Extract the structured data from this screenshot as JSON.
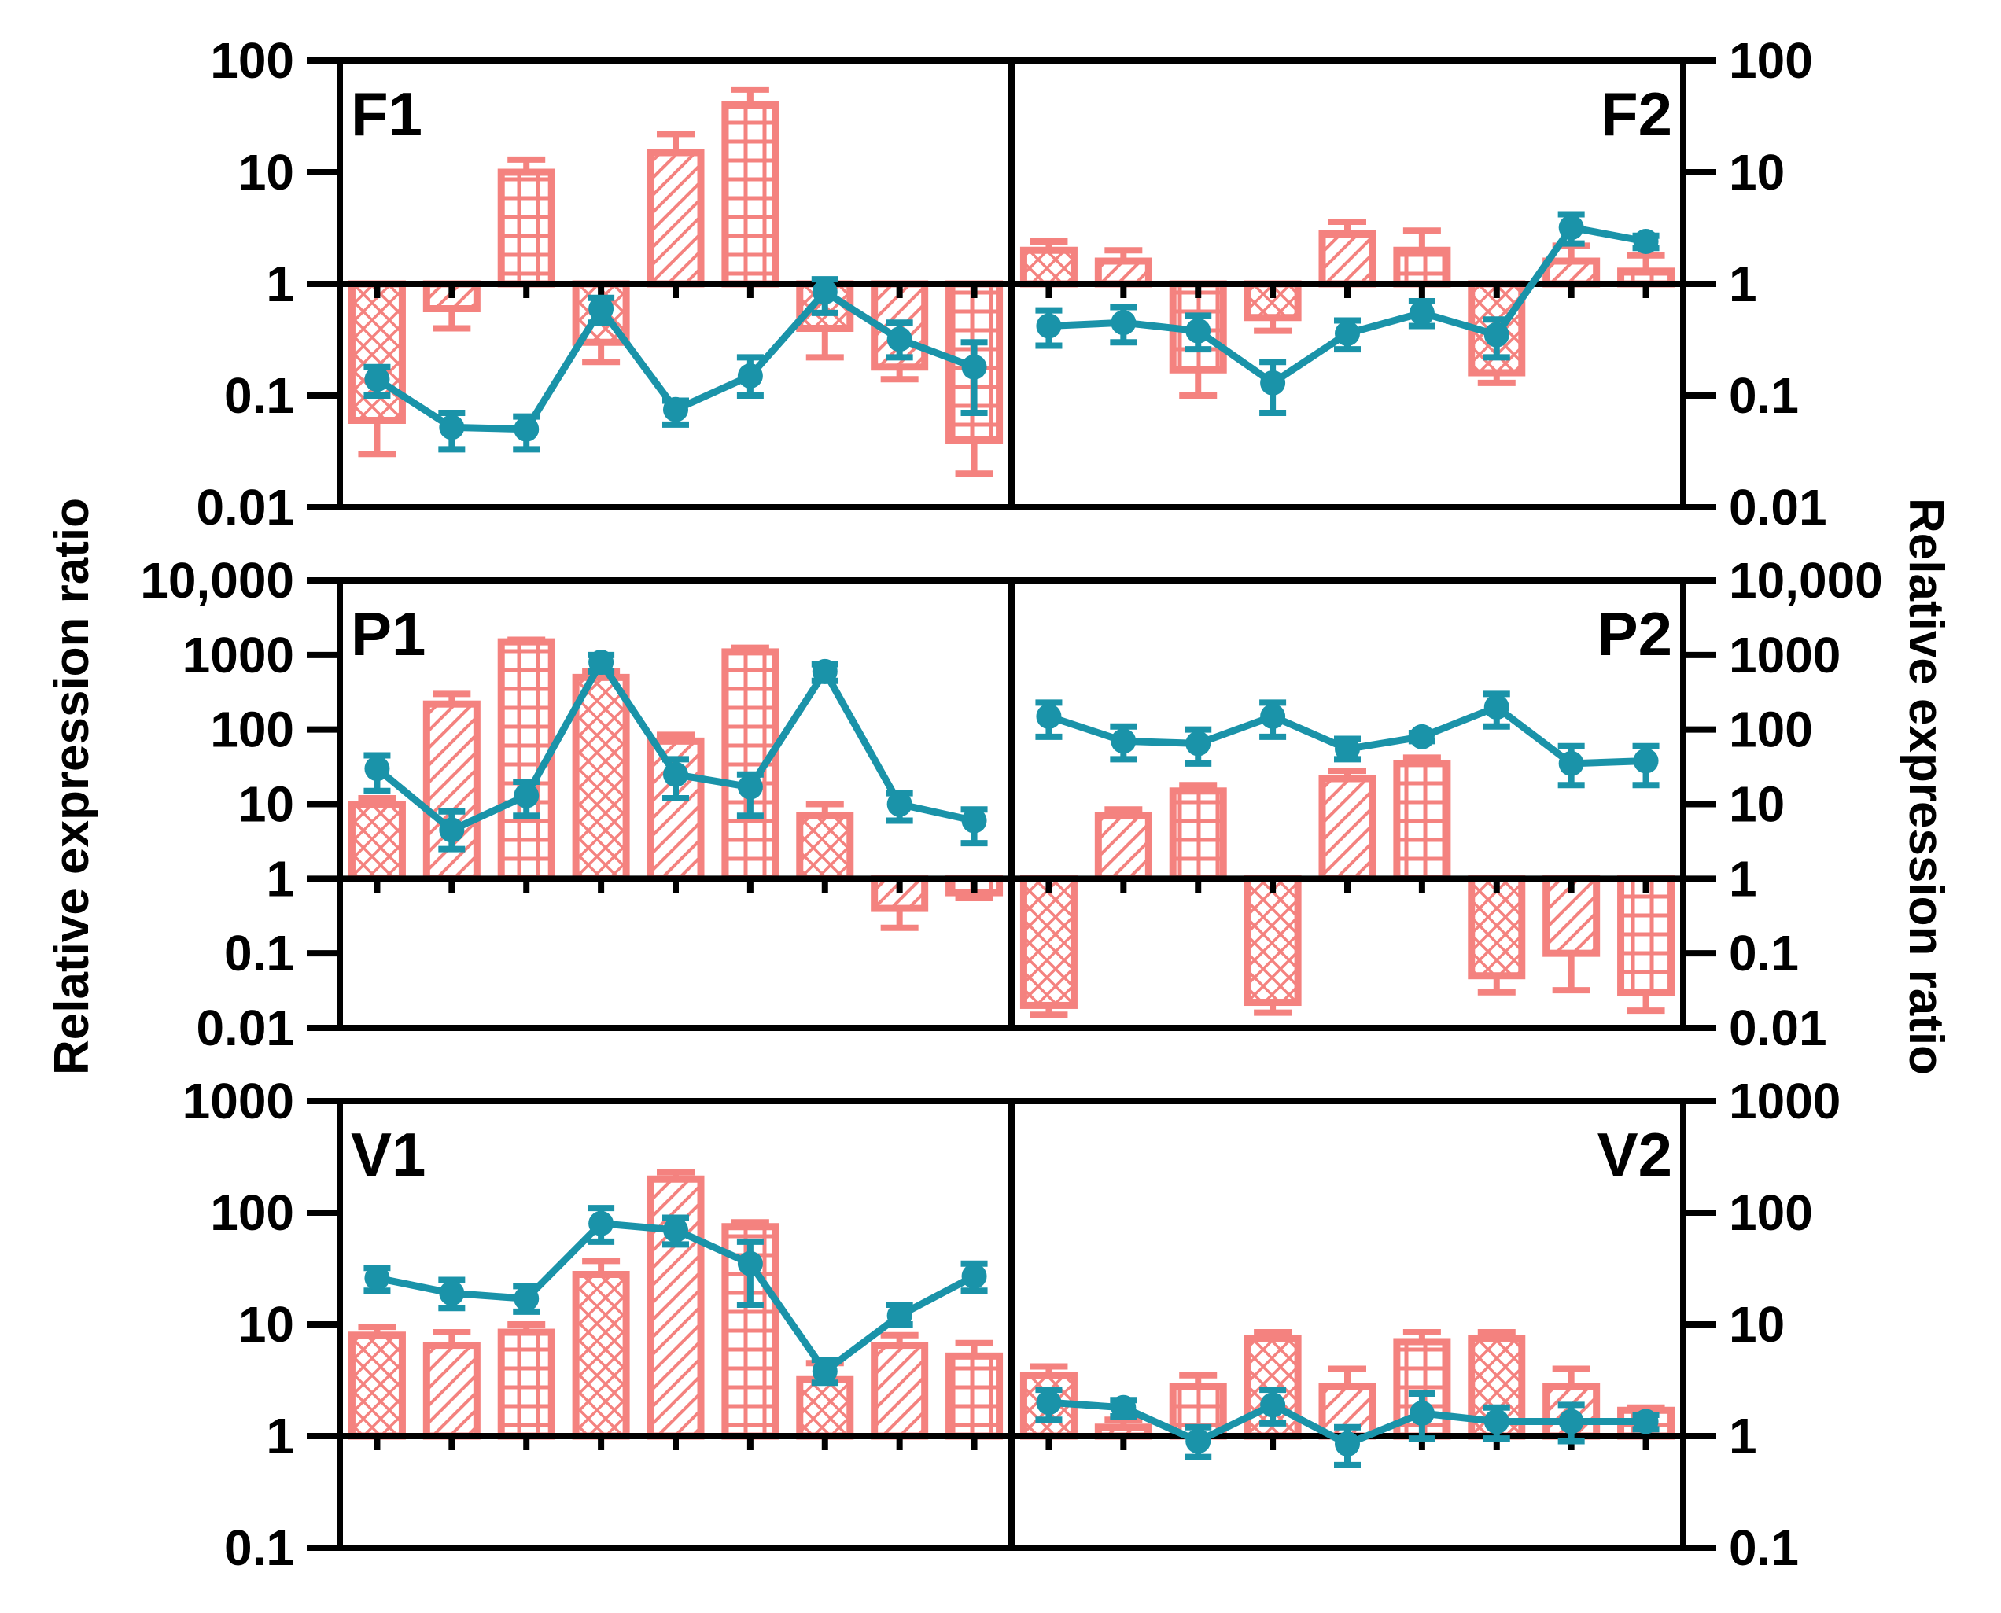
{
  "figure": {
    "left_ylabel": "Relative expression ratio",
    "right_ylabel": "Relative expression ratio",
    "colors": {
      "bar": "#F4827F",
      "line": "#1A93A9",
      "axis": "#000000"
    }
  },
  "chart_data": [
    {
      "type": "bar+line",
      "panel": "F1",
      "side": "left",
      "label_pos": "top-left",
      "scale": "log",
      "baseline": 1,
      "ylim": [
        0.01,
        100
      ],
      "yticks": [
        0.01,
        0.1,
        1,
        10,
        100
      ],
      "ytick_labels": [
        "0.01",
        "0.1",
        "1",
        "10",
        "100"
      ],
      "bars": [
        {
          "value": 0.06,
          "err": 0.03,
          "pattern": "crosshatch"
        },
        {
          "value": 0.6,
          "err": 0.4,
          "pattern": "diagonal"
        },
        {
          "value": 10,
          "err": 13,
          "pattern": "grid"
        },
        {
          "value": 0.3,
          "err": 0.2,
          "pattern": "crosshatch"
        },
        {
          "value": 15,
          "err": 22,
          "pattern": "diagonal"
        },
        {
          "value": 40,
          "err": 55,
          "pattern": "grid"
        },
        {
          "value": 0.4,
          "err": 0.22,
          "pattern": "crosshatch"
        },
        {
          "value": 0.18,
          "err": 0.14,
          "pattern": "diagonal"
        },
        {
          "value": 0.04,
          "err": 0.02,
          "pattern": "grid"
        }
      ],
      "line": [
        {
          "value": 0.14,
          "lo": 0.1,
          "hi": 0.18
        },
        {
          "value": 0.052,
          "lo": 0.033,
          "hi": 0.07
        },
        {
          "value": 0.05,
          "lo": 0.033,
          "hi": 0.065
        },
        {
          "value": 0.6,
          "lo": 0.45,
          "hi": 0.75
        },
        {
          "value": 0.075,
          "lo": 0.055,
          "hi": 0.09
        },
        {
          "value": 0.15,
          "lo": 0.1,
          "hi": 0.22
        },
        {
          "value": 0.85,
          "lo": 0.55,
          "hi": 1.1
        },
        {
          "value": 0.32,
          "lo": 0.22,
          "hi": 0.45
        },
        {
          "value": 0.18,
          "lo": 0.07,
          "hi": 0.3
        }
      ]
    },
    {
      "type": "bar+line",
      "panel": "F2",
      "side": "right",
      "label_pos": "top-right",
      "scale": "log",
      "baseline": 1,
      "ylim": [
        0.01,
        100
      ],
      "yticks": [
        0.01,
        0.1,
        1,
        10,
        100
      ],
      "ytick_labels": [
        "0.01",
        "0.1",
        "1",
        "10",
        "100"
      ],
      "bars": [
        {
          "value": 2,
          "err": 2.4,
          "pattern": "crosshatch"
        },
        {
          "value": 1.6,
          "err": 2,
          "pattern": "diagonal"
        },
        {
          "value": 0.17,
          "err": 0.1,
          "pattern": "grid"
        },
        {
          "value": 0.5,
          "err": 0.38,
          "pattern": "crosshatch"
        },
        {
          "value": 2.8,
          "err": 3.6,
          "pattern": "diagonal"
        },
        {
          "value": 2,
          "err": 3,
          "pattern": "grid"
        },
        {
          "value": 0.16,
          "err": 0.13,
          "pattern": "crosshatch"
        },
        {
          "value": 1.6,
          "err": 2.2,
          "pattern": "diagonal"
        },
        {
          "value": 1.3,
          "err": 1.8,
          "pattern": "grid"
        }
      ],
      "line": [
        {
          "value": 0.42,
          "lo": 0.28,
          "hi": 0.58
        },
        {
          "value": 0.45,
          "lo": 0.3,
          "hi": 0.62
        },
        {
          "value": 0.38,
          "lo": 0.26,
          "hi": 0.52
        },
        {
          "value": 0.13,
          "lo": 0.07,
          "hi": 0.2
        },
        {
          "value": 0.36,
          "lo": 0.26,
          "hi": 0.47
        },
        {
          "value": 0.55,
          "lo": 0.42,
          "hi": 0.7
        },
        {
          "value": 0.35,
          "lo": 0.22,
          "hi": 0.48
        },
        {
          "value": 3.2,
          "lo": 2.3,
          "hi": 4.2
        },
        {
          "value": 2.4,
          "lo": 2.1,
          "hi": 2.7
        }
      ]
    },
    {
      "type": "bar+line",
      "panel": "P1",
      "side": "left",
      "label_pos": "top-left",
      "scale": "log",
      "baseline": 1,
      "ylim": [
        0.01,
        10000
      ],
      "yticks": [
        0.01,
        0.1,
        1,
        10,
        100,
        1000,
        10000
      ],
      "ytick_labels": [
        "0.01",
        "0.1",
        "1",
        "10",
        "100",
        "1000",
        "10,000"
      ],
      "bars": [
        {
          "value": 10,
          "err": 12,
          "pattern": "crosshatch"
        },
        {
          "value": 220,
          "err": 300,
          "pattern": "diagonal"
        },
        {
          "value": 1500,
          "err": 1600,
          "pattern": "grid"
        },
        {
          "value": 500,
          "err": 600,
          "pattern": "crosshatch"
        },
        {
          "value": 70,
          "err": 85,
          "pattern": "diagonal"
        },
        {
          "value": 1100,
          "err": 1250,
          "pattern": "grid"
        },
        {
          "value": 7,
          "err": 10,
          "pattern": "crosshatch"
        },
        {
          "value": 0.4,
          "err": 0.22,
          "pattern": "diagonal"
        },
        {
          "value": 0.65,
          "err": 0.55,
          "pattern": "grid"
        }
      ],
      "line": [
        {
          "value": 30,
          "lo": 15,
          "hi": 45
        },
        {
          "value": 4.5,
          "lo": 2.5,
          "hi": 8
        },
        {
          "value": 13,
          "lo": 7,
          "hi": 20
        },
        {
          "value": 800,
          "lo": 600,
          "hi": 1000
        },
        {
          "value": 25,
          "lo": 12,
          "hi": 40
        },
        {
          "value": 17,
          "lo": 7,
          "hi": 25
        },
        {
          "value": 600,
          "lo": 450,
          "hi": 750
        },
        {
          "value": 10,
          "lo": 6,
          "hi": 14
        },
        {
          "value": 6,
          "lo": 3,
          "hi": 8.5
        }
      ]
    },
    {
      "type": "bar+line",
      "panel": "P2",
      "side": "right",
      "label_pos": "top-right",
      "scale": "log",
      "baseline": 1,
      "ylim": [
        0.01,
        10000
      ],
      "yticks": [
        0.01,
        0.1,
        1,
        10,
        100,
        1000,
        10000
      ],
      "ytick_labels": [
        "0.01",
        "0.1",
        "1",
        "10",
        "100",
        "1000",
        "10,000"
      ],
      "bars": [
        {
          "value": 0.02,
          "err": 0.015,
          "pattern": "crosshatch"
        },
        {
          "value": 7,
          "err": 8.5,
          "pattern": "diagonal"
        },
        {
          "value": 15,
          "err": 18,
          "pattern": "grid"
        },
        {
          "value": 0.022,
          "err": 0.016,
          "pattern": "crosshatch"
        },
        {
          "value": 22,
          "err": 28,
          "pattern": "diagonal"
        },
        {
          "value": 35,
          "err": 42,
          "pattern": "grid"
        },
        {
          "value": 0.05,
          "err": 0.03,
          "pattern": "crosshatch"
        },
        {
          "value": 0.1,
          "err": 0.032,
          "pattern": "diagonal"
        },
        {
          "value": 0.03,
          "err": 0.017,
          "pattern": "grid"
        }
      ],
      "line": [
        {
          "value": 150,
          "lo": 80,
          "hi": 230
        },
        {
          "value": 70,
          "lo": 40,
          "hi": 110
        },
        {
          "value": 65,
          "lo": 35,
          "hi": 100
        },
        {
          "value": 150,
          "lo": 80,
          "hi": 230
        },
        {
          "value": 55,
          "lo": 40,
          "hi": 75
        },
        {
          "value": 80,
          "lo": 70,
          "hi": 90
        },
        {
          "value": 200,
          "lo": 110,
          "hi": 300
        },
        {
          "value": 35,
          "lo": 18,
          "hi": 60
        },
        {
          "value": 38,
          "lo": 18,
          "hi": 60
        }
      ]
    },
    {
      "type": "bar+line",
      "panel": "V1",
      "side": "left",
      "label_pos": "top-left",
      "scale": "log",
      "baseline": 1,
      "ylim": [
        0.1,
        1000
      ],
      "yticks": [
        0.1,
        1,
        10,
        100,
        1000
      ],
      "ytick_labels": [
        "0.1",
        "1",
        "10",
        "100",
        "1000"
      ],
      "bars": [
        {
          "value": 8,
          "err": 9.5,
          "pattern": "crosshatch"
        },
        {
          "value": 6.5,
          "err": 8.5,
          "pattern": "diagonal"
        },
        {
          "value": 8.5,
          "err": 10,
          "pattern": "grid"
        },
        {
          "value": 28,
          "err": 37,
          "pattern": "crosshatch"
        },
        {
          "value": 200,
          "err": 230,
          "pattern": "diagonal"
        },
        {
          "value": 75,
          "err": 82,
          "pattern": "grid"
        },
        {
          "value": 3.2,
          "err": 4.5,
          "pattern": "crosshatch"
        },
        {
          "value": 6.5,
          "err": 8,
          "pattern": "diagonal"
        },
        {
          "value": 5.2,
          "err": 6.8,
          "pattern": "grid"
        }
      ],
      "line": [
        {
          "value": 26,
          "lo": 20,
          "hi": 32
        },
        {
          "value": 19,
          "lo": 14,
          "hi": 25
        },
        {
          "value": 17,
          "lo": 13,
          "hi": 22
        },
        {
          "value": 80,
          "lo": 55,
          "hi": 110
        },
        {
          "value": 70,
          "lo": 52,
          "hi": 90
        },
        {
          "value": 35,
          "lo": 15,
          "hi": 55
        },
        {
          "value": 3.8,
          "lo": 3,
          "hi": 4.8
        },
        {
          "value": 12,
          "lo": 10,
          "hi": 15
        },
        {
          "value": 27,
          "lo": 20,
          "hi": 35
        }
      ]
    },
    {
      "type": "bar+line",
      "panel": "V2",
      "side": "right",
      "label_pos": "top-right",
      "scale": "log",
      "baseline": 1,
      "ylim": [
        0.1,
        1000
      ],
      "yticks": [
        0.1,
        1,
        10,
        100,
        1000
      ],
      "ytick_labels": [
        "0.1",
        "1",
        "10",
        "100",
        "1000"
      ],
      "bars": [
        {
          "value": 3.5,
          "err": 4.2,
          "pattern": "crosshatch"
        },
        {
          "value": 1.2,
          "err": 1.4,
          "pattern": "diagonal"
        },
        {
          "value": 2.8,
          "err": 3.5,
          "pattern": "grid"
        },
        {
          "value": 7.5,
          "err": 8.5,
          "pattern": "crosshatch"
        },
        {
          "value": 2.8,
          "err": 4,
          "pattern": "diagonal"
        },
        {
          "value": 7,
          "err": 8.5,
          "pattern": "grid"
        },
        {
          "value": 7.5,
          "err": 8.5,
          "pattern": "crosshatch"
        },
        {
          "value": 2.8,
          "err": 4,
          "pattern": "diagonal"
        },
        {
          "value": 1.7,
          "err": 1.8,
          "pattern": "grid"
        }
      ],
      "line": [
        {
          "value": 2,
          "lo": 1.4,
          "hi": 2.6
        },
        {
          "value": 1.8,
          "lo": 1.5,
          "hi": 2.1
        },
        {
          "value": 0.9,
          "lo": 0.65,
          "hi": 1.2
        },
        {
          "value": 1.9,
          "lo": 1.3,
          "hi": 2.6
        },
        {
          "value": 0.85,
          "lo": 0.55,
          "hi": 1.2
        },
        {
          "value": 1.6,
          "lo": 0.95,
          "hi": 2.4
        },
        {
          "value": 1.35,
          "lo": 0.95,
          "hi": 1.8
        },
        {
          "value": 1.35,
          "lo": 0.9,
          "hi": 1.9
        },
        {
          "value": 1.35,
          "lo": 1.15,
          "hi": 1.55
        }
      ]
    }
  ]
}
